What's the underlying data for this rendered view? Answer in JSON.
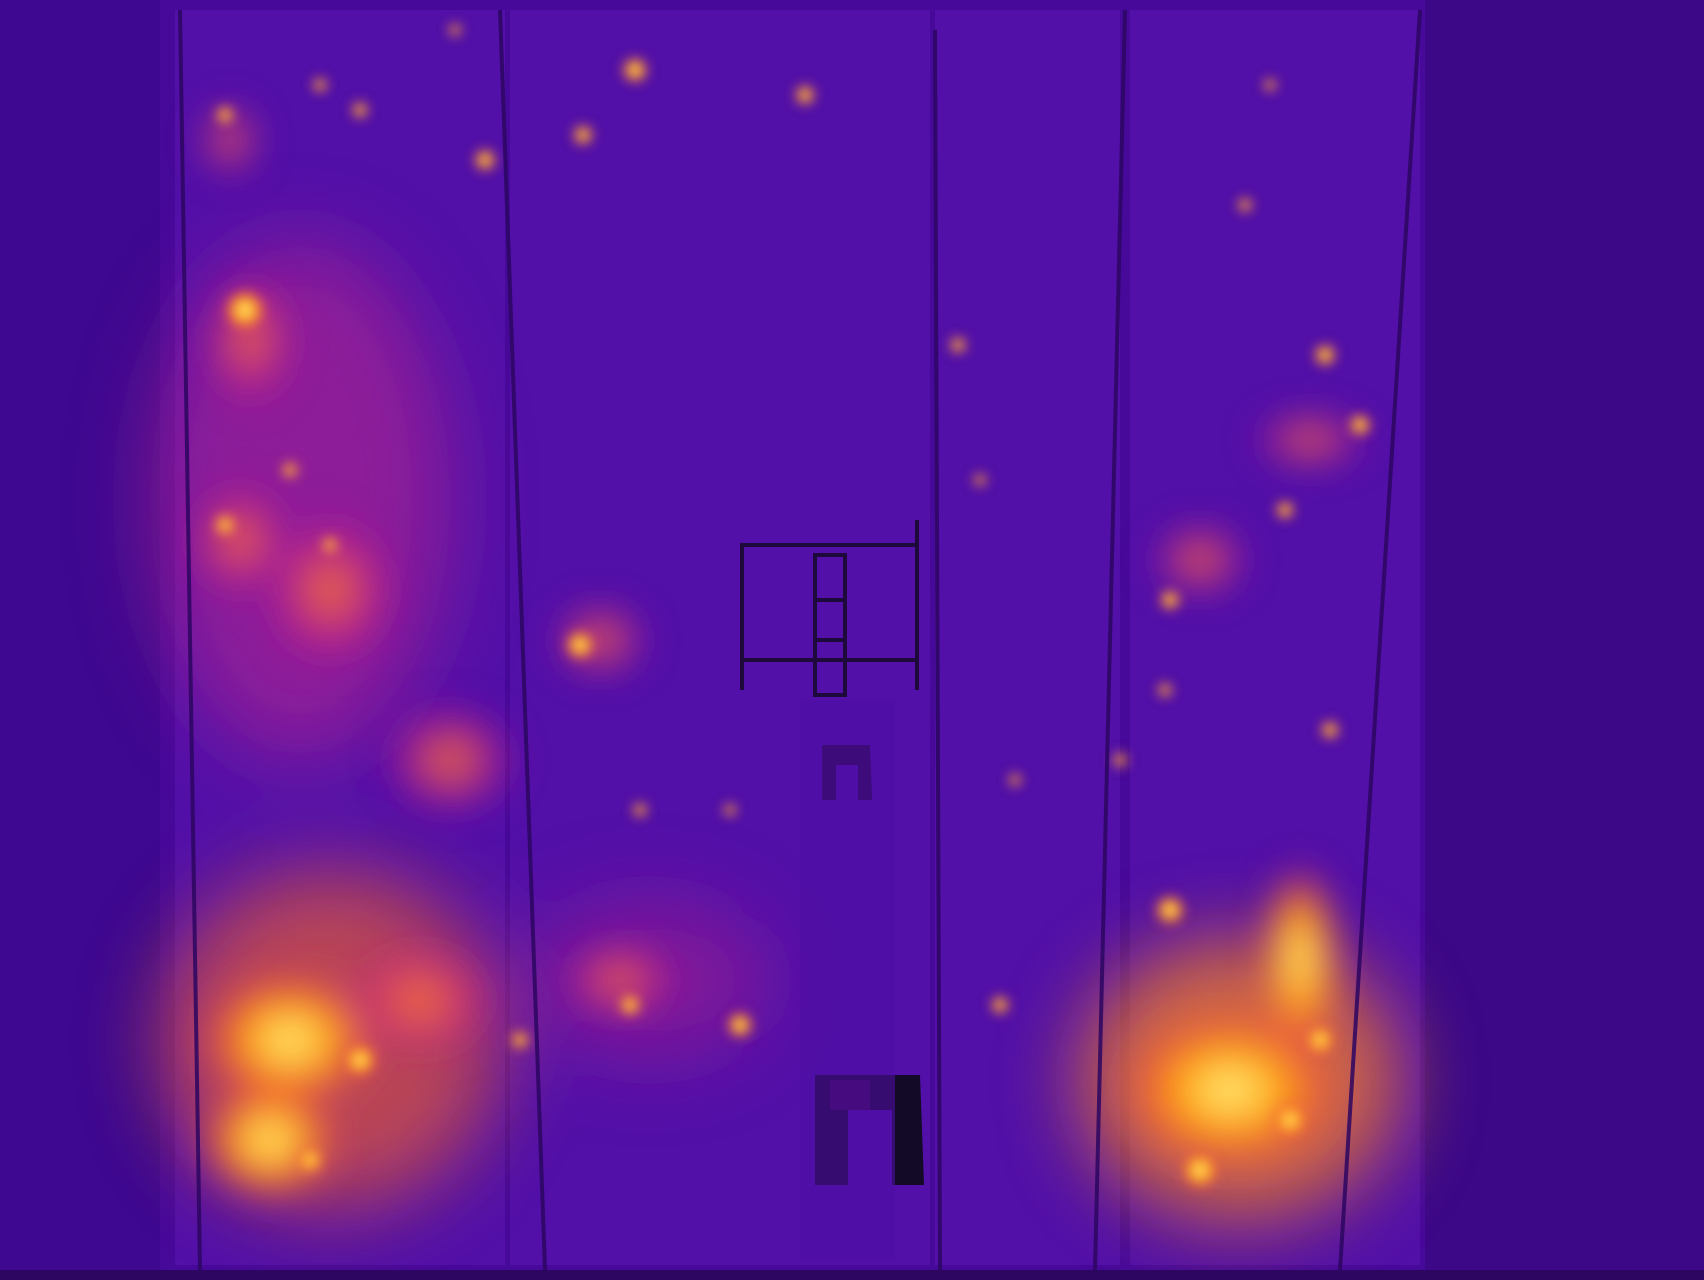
{
  "image": {
    "kind": "thermal-aerial-photo",
    "palette": [
      "#2a0660",
      "#4b0aa0",
      "#6a14b8",
      "#a81c9c",
      "#e0386a",
      "#ff7a1a",
      "#ffc21a",
      "#fff1a0"
    ],
    "background_color": "#4a0a9a",
    "dark_cool_color": "#12082a",
    "hot_color": "#ffb21a"
  }
}
